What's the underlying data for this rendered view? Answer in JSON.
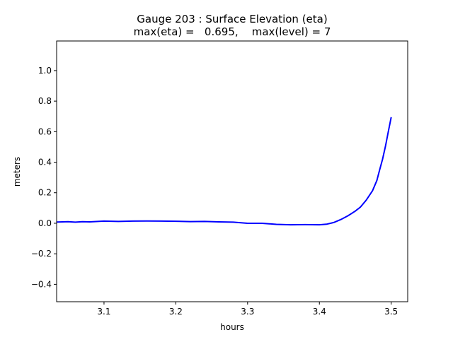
{
  "chart_data": {
    "type": "line",
    "title": "Gauge 203 : Surface Elevation (eta)",
    "subtitle": "max(eta) =   0.695,    max(level) = 7",
    "xlabel": "hours",
    "ylabel": "meters",
    "xlim": [
      3.034,
      3.523
    ],
    "ylim": [
      -0.514,
      1.194
    ],
    "xticks": [
      3.1,
      3.2,
      3.3,
      3.4,
      3.5
    ],
    "xtick_labels": [
      "3.1",
      "3.2",
      "3.3",
      "3.4",
      "3.5"
    ],
    "yticks": [
      -0.4,
      -0.2,
      0.0,
      0.2,
      0.4,
      0.6,
      0.8,
      1.0
    ],
    "ytick_labels": [
      "−0.4",
      "−0.2",
      "0.0",
      "0.2",
      "0.4",
      "0.6",
      "0.8",
      "1.0"
    ],
    "grid": false,
    "series": [
      {
        "name": "eta",
        "color": "#0000ff",
        "x": [
          3.034,
          3.05,
          3.06,
          3.07,
          3.08,
          3.1,
          3.12,
          3.14,
          3.16,
          3.18,
          3.2,
          3.22,
          3.24,
          3.26,
          3.28,
          3.3,
          3.32,
          3.34,
          3.36,
          3.38,
          3.4,
          3.41,
          3.42,
          3.43,
          3.44,
          3.45,
          3.457,
          3.465,
          3.474,
          3.48,
          3.484,
          3.488,
          3.492,
          3.496,
          3.5
        ],
        "y": [
          0.008,
          0.01,
          0.007,
          0.01,
          0.009,
          0.014,
          0.012,
          0.014,
          0.015,
          0.014,
          0.013,
          0.011,
          0.012,
          0.009,
          0.007,
          0.0,
          0.0,
          -0.007,
          -0.01,
          -0.009,
          -0.01,
          -0.006,
          0.005,
          0.025,
          0.05,
          0.08,
          0.106,
          0.15,
          0.213,
          0.28,
          0.35,
          0.42,
          0.505,
          0.6,
          0.695
        ]
      }
    ]
  }
}
